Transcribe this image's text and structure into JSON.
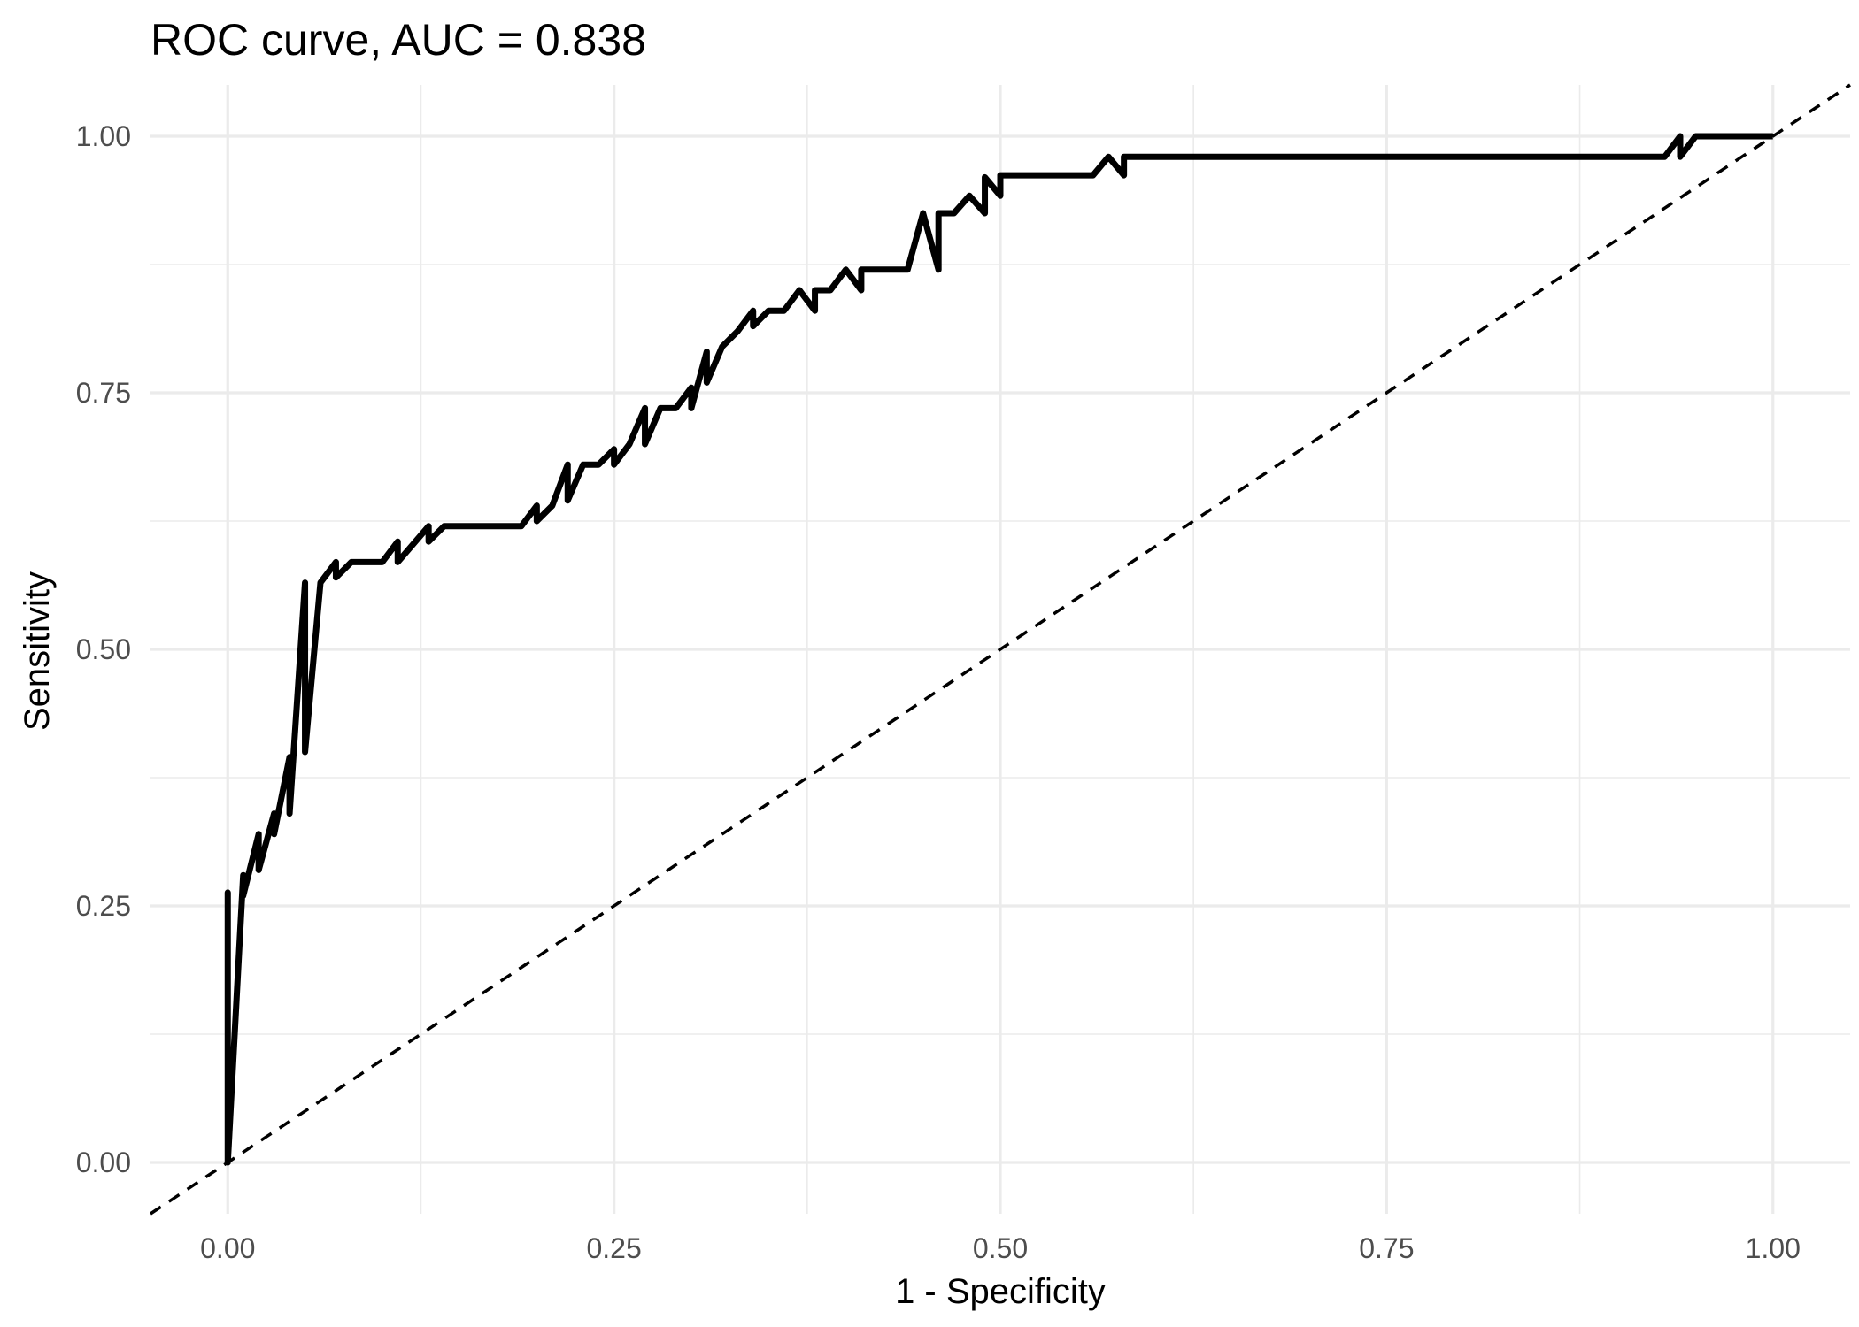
{
  "chart_data": {
    "type": "line",
    "title": "ROC curve, AUC = 0.838",
    "xlabel": "1 - Specificity",
    "ylabel": "Sensitivity",
    "xlim": [
      -0.05,
      1.05
    ],
    "ylim": [
      -0.05,
      1.05
    ],
    "x_ticks": [
      0,
      0.25,
      0.5,
      0.75,
      1
    ],
    "x_tick_labels": [
      "0.00",
      "0.25",
      "0.50",
      "0.75",
      "1.00"
    ],
    "y_ticks": [
      0,
      0.25,
      0.5,
      0.75,
      1
    ],
    "y_tick_labels": [
      "0.00",
      "0.25",
      "0.50",
      "0.75",
      "1.00"
    ],
    "grid": true,
    "legend": "none",
    "series": [
      {
        "style": "solid",
        "color": "#000000",
        "x": [
          0.0,
          0.0,
          0.0,
          0.01,
          0.01,
          0.02,
          0.02,
          0.03,
          0.03,
          0.04,
          0.04,
          0.05,
          0.05,
          0.06,
          0.07,
          0.07,
          0.08,
          0.1,
          0.11,
          0.11,
          0.13,
          0.13,
          0.14,
          0.19,
          0.2,
          0.2,
          0.21,
          0.22,
          0.22,
          0.23,
          0.24,
          0.25,
          0.25,
          0.26,
          0.27,
          0.27,
          0.28,
          0.29,
          0.3,
          0.3,
          0.31,
          0.31,
          0.32,
          0.33,
          0.34,
          0.34,
          0.35,
          0.36,
          0.37,
          0.38,
          0.38,
          0.39,
          0.4,
          0.41,
          0.41,
          0.42,
          0.43,
          0.44,
          0.45,
          0.46,
          0.46,
          0.47,
          0.48,
          0.49,
          0.49,
          0.5,
          0.5,
          0.51,
          0.52,
          0.56,
          0.57,
          0.58,
          0.58,
          0.59,
          0.93,
          0.94,
          0.94,
          0.95,
          1.0
        ],
        "y": [
          0.0,
          0.263,
          0.0,
          0.28,
          0.26,
          0.32,
          0.285,
          0.34,
          0.32,
          0.395,
          0.34,
          0.565,
          0.4,
          0.565,
          0.585,
          0.57,
          0.585,
          0.585,
          0.605,
          0.585,
          0.62,
          0.605,
          0.62,
          0.62,
          0.64,
          0.625,
          0.64,
          0.68,
          0.645,
          0.68,
          0.68,
          0.695,
          0.68,
          0.7,
          0.735,
          0.7,
          0.735,
          0.735,
          0.755,
          0.735,
          0.79,
          0.76,
          0.795,
          0.81,
          0.83,
          0.815,
          0.83,
          0.83,
          0.85,
          0.83,
          0.85,
          0.85,
          0.87,
          0.85,
          0.87,
          0.87,
          0.87,
          0.87,
          0.925,
          0.87,
          0.925,
          0.925,
          0.942,
          0.925,
          0.96,
          0.942,
          0.962,
          0.962,
          0.962,
          0.962,
          0.98,
          0.962,
          0.98,
          0.98,
          0.98,
          1.0,
          0.98,
          1.0,
          1.0
        ]
      },
      {
        "style": "dashed",
        "color": "#000000",
        "x": [
          -0.05,
          1.05
        ],
        "y": [
          -0.05,
          1.05
        ]
      }
    ]
  }
}
